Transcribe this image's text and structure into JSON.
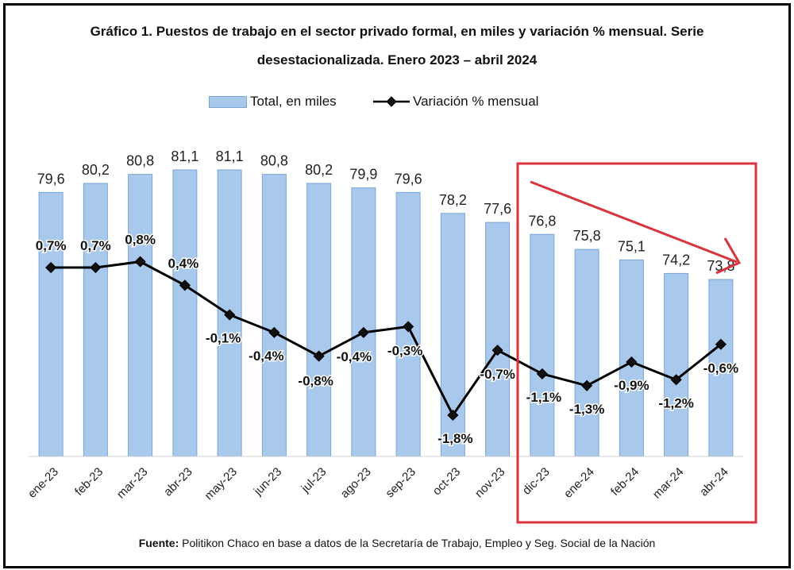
{
  "title_line1": "Gráfico 1. Puestos de trabajo en el sector privado formal, en miles y variación % mensual. Serie",
  "title_line2": "desestacionalizada. Enero 2023 – abril 2024",
  "source_label": "Fuente:",
  "source_text": " Politikon Chaco en base a datos de la Secretaría de Trabajo, Empleo y Seg. Social de la Nación",
  "colors": {
    "bar": "#a9c9ec",
    "bar_edge": "#7aa6d4",
    "line": "#000000",
    "marker": "#111111",
    "highlight_box": "#d9343d",
    "arrow": "#d9343d"
  },
  "chart_data": {
    "type": "bar",
    "categories": [
      "ene-23",
      "feb-23",
      "mar-23",
      "abr-23",
      "may-23",
      "jun-23",
      "jul-23",
      "ago-23",
      "sep-23",
      "oct-23",
      "nov-23",
      "dic-23",
      "ene-24",
      "feb-24",
      "mar-24",
      "abr-24"
    ],
    "series": [
      {
        "name": "Total, en miles",
        "type": "bar",
        "values": [
          79.6,
          80.2,
          80.8,
          81.1,
          81.1,
          80.8,
          80.2,
          79.9,
          79.6,
          78.2,
          77.6,
          76.8,
          75.8,
          75.1,
          74.2,
          73.8
        ],
        "labels": [
          "79,6",
          "80,2",
          "80,8",
          "81,1",
          "81,1",
          "80,8",
          "80,2",
          "79,9",
          "79,6",
          "78,2",
          "77,6",
          "76,8",
          "75,8",
          "75,1",
          "74,2",
          "73,8"
        ]
      },
      {
        "name": "Variación % mensual",
        "type": "line",
        "values": [
          0.7,
          0.7,
          0.8,
          0.4,
          -0.1,
          -0.4,
          -0.8,
          -0.4,
          -0.3,
          -1.8,
          -0.7,
          -1.1,
          -1.3,
          -0.9,
          -1.2,
          -0.6
        ],
        "labels": [
          "0,7%",
          "0,7%",
          "0,8%",
          "0,4%",
          "-0,1%",
          "-0,4%",
          "-0,8%",
          "-0,4%",
          "-0,3%",
          "-1,8%",
          "-0,7%",
          "-1,1%",
          "-1,3%",
          "-0,9%",
          "-1,2%",
          "-0,6%"
        ]
      }
    ],
    "bar_ylim": [
      62,
      81.1
    ],
    "line_ylim": [
      -2.5,
      1.4
    ],
    "grid": false,
    "legend_position": "top",
    "annotation": "red box highlighting dic-23 to abr-24 with a downward arrow"
  }
}
